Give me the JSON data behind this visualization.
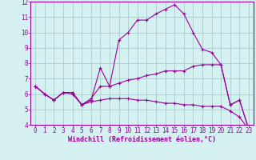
{
  "line1_x": [
    0,
    1,
    2,
    3,
    4,
    5,
    6,
    7,
    8,
    9,
    10,
    11,
    12,
    13,
    14,
    15,
    16,
    17,
    18,
    19,
    20,
    21,
    22,
    23
  ],
  "line1_y": [
    6.5,
    6.0,
    5.6,
    6.1,
    6.1,
    5.3,
    5.6,
    7.7,
    6.5,
    9.5,
    10.0,
    10.8,
    10.8,
    11.2,
    11.5,
    11.8,
    11.2,
    10.0,
    8.9,
    8.7,
    7.9,
    5.3,
    5.6,
    3.7
  ],
  "line2_x": [
    0,
    1,
    2,
    3,
    4,
    5,
    6,
    7,
    8,
    9,
    10,
    11,
    12,
    13,
    14,
    15,
    16,
    17,
    18,
    19,
    20,
    21,
    22,
    23
  ],
  "line2_y": [
    6.5,
    6.0,
    5.6,
    6.1,
    6.1,
    5.3,
    5.7,
    6.5,
    6.5,
    6.7,
    6.9,
    7.0,
    7.2,
    7.3,
    7.5,
    7.5,
    7.5,
    7.8,
    7.9,
    7.9,
    7.9,
    5.3,
    5.6,
    3.7
  ],
  "line3_x": [
    0,
    1,
    2,
    3,
    4,
    5,
    6,
    7,
    8,
    9,
    10,
    11,
    12,
    13,
    14,
    15,
    16,
    17,
    18,
    19,
    20,
    21,
    22,
    23
  ],
  "line3_y": [
    6.5,
    6.0,
    5.6,
    6.1,
    6.0,
    5.3,
    5.5,
    5.6,
    5.7,
    5.7,
    5.7,
    5.6,
    5.6,
    5.5,
    5.4,
    5.4,
    5.3,
    5.3,
    5.2,
    5.2,
    5.2,
    4.9,
    4.5,
    3.7
  ],
  "line_color": "#990099",
  "bg_color": "#d4f0f0",
  "grid_color": "#aacccc",
  "xlabel": "Windchill (Refroidissement éolien,°C)",
  "xlim": [
    -0.5,
    23.5
  ],
  "ylim": [
    4,
    12
  ],
  "yticks": [
    4,
    5,
    6,
    7,
    8,
    9,
    10,
    11,
    12
  ],
  "xticks": [
    0,
    1,
    2,
    3,
    4,
    5,
    6,
    7,
    8,
    9,
    10,
    11,
    12,
    13,
    14,
    15,
    16,
    17,
    18,
    19,
    20,
    21,
    22,
    23
  ],
  "marker": "+"
}
